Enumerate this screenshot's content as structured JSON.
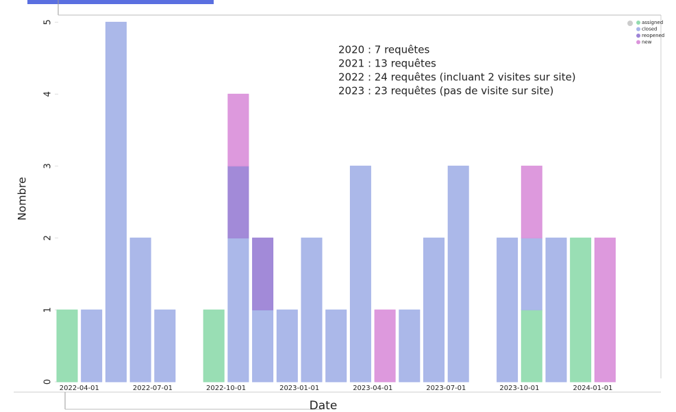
{
  "chart_data": {
    "type": "bar",
    "stacked": true,
    "x_label": "Date",
    "y_label": "Nombre",
    "annotations": [
      "2020 : 7 requêtes",
      "2021 : 13 requêtes",
      "2022 : 24 requêtes (incluant 2 visites sur site)",
      "2023 : 23 requêtes (pas de visite sur site)"
    ],
    "categories": [
      null,
      null,
      null,
      null,
      null,
      null,
      null,
      null,
      null,
      null,
      null,
      null,
      null,
      null,
      null,
      null,
      null,
      null,
      null,
      null,
      null,
      null,
      null
    ],
    "xtick_labels": [
      "2022-04-01",
      "2022-07-01",
      "2022-10-01",
      "2023-01-01",
      "2023-04-01",
      "2023-07-01",
      "2023-10-01",
      "2024-01-01"
    ],
    "series": [
      {
        "name": "assigned",
        "color": "#93dcb0",
        "values": [
          1,
          0,
          0,
          0,
          0,
          0,
          1,
          0,
          0,
          0,
          0,
          0,
          0,
          0,
          0,
          0,
          0,
          0,
          0,
          1,
          0,
          2,
          0
        ]
      },
      {
        "name": "closed",
        "color": "#a7b4e8",
        "values": [
          0,
          1,
          5,
          2,
          1,
          0,
          0,
          2,
          1,
          1,
          2,
          1,
          3,
          0,
          1,
          2,
          3,
          0,
          2,
          1,
          2,
          0,
          0
        ]
      },
      {
        "name": "reopened",
        "color": "#9d84d6",
        "values": [
          0,
          0,
          0,
          0,
          0,
          0,
          0,
          1,
          1,
          0,
          0,
          0,
          0,
          0,
          0,
          0,
          0,
          0,
          0,
          0,
          0,
          0,
          0
        ]
      },
      {
        "name": "new",
        "color": "#db94db",
        "values": [
          0,
          0,
          0,
          0,
          0,
          0,
          0,
          1,
          0,
          0,
          0,
          0,
          0,
          1,
          0,
          0,
          0,
          0,
          0,
          1,
          0,
          0,
          2
        ]
      }
    ],
    "ylim": [
      0,
      5.07
    ],
    "yticks": [
      0,
      1,
      2,
      3,
      4,
      5
    ],
    "legend": "upper right"
  }
}
